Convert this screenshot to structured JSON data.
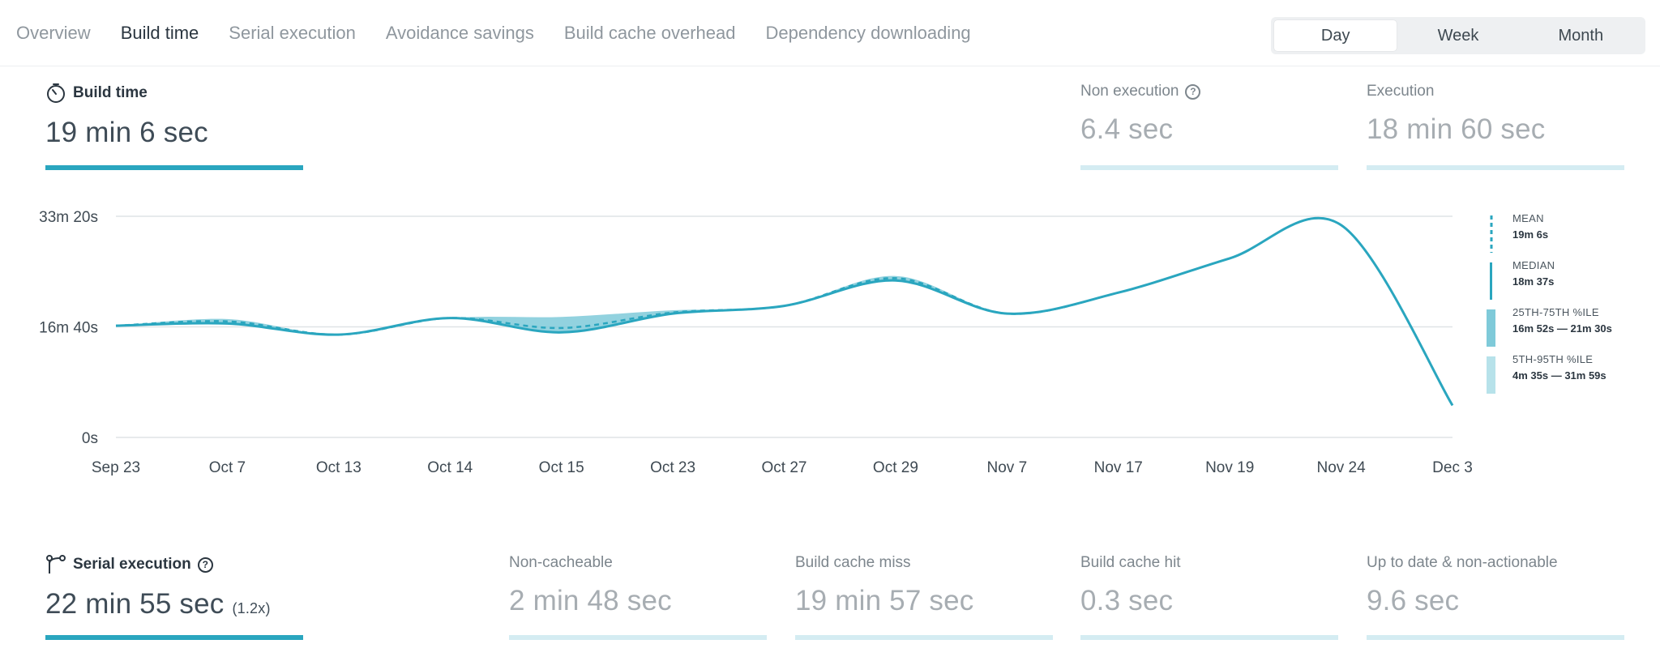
{
  "tabs": [
    {
      "label": "Overview",
      "active": false
    },
    {
      "label": "Build time",
      "active": true
    },
    {
      "label": "Serial execution",
      "active": false
    },
    {
      "label": "Avoidance savings",
      "active": false
    },
    {
      "label": "Build cache overhead",
      "active": false
    },
    {
      "label": "Dependency downloading",
      "active": false
    }
  ],
  "period": {
    "options": [
      "Day",
      "Week",
      "Month"
    ],
    "selected": "Day"
  },
  "build_time": {
    "label": "Build time",
    "value": "19 min 6 sec",
    "icon": "stopwatch-icon"
  },
  "non_execution": {
    "label": "Non execution",
    "value": "6.4 sec"
  },
  "execution": {
    "label": "Execution",
    "value": "18 min 60 sec"
  },
  "serial_execution": {
    "label": "Serial execution",
    "value": "22 min 55 sec",
    "multiplier": "(1.2x)",
    "icon": "branch-icon"
  },
  "non_cacheable": {
    "label": "Non-cacheable",
    "value": "2 min 48 sec"
  },
  "cache_miss": {
    "label": "Build cache miss",
    "value": "19 min 57 sec"
  },
  "cache_hit": {
    "label": "Build cache hit",
    "value": "0.3 sec"
  },
  "up_to_date": {
    "label": "Up to date & non-actionable",
    "value": "9.6 sec"
  },
  "legend": {
    "mean": {
      "label": "MEAN",
      "value": "19m 6s"
    },
    "median": {
      "label": "MEDIAN",
      "value": "18m 37s"
    },
    "iqr": {
      "label": "25TH-75TH %ILE",
      "value": "16m 52s — 21m 30s"
    },
    "p5_95": {
      "label": "5TH-95TH %ILE",
      "value": "4m 35s — 31m 59s"
    }
  },
  "colors": {
    "accent": "#2aa6bf",
    "accent_light": "#d4ecf2",
    "band_dark": "#7fcad9",
    "band_light": "#b7e2ea"
  },
  "chart_data": {
    "type": "line",
    "y_unit": "seconds",
    "ylim": [
      0,
      2000
    ],
    "y_ticks": [
      {
        "value": 0,
        "label": "0s"
      },
      {
        "value": 1000,
        "label": "16m 40s"
      },
      {
        "value": 2000,
        "label": "33m 20s"
      }
    ],
    "categories": [
      "Sep 23",
      "Oct 7",
      "Oct 13",
      "Oct 14",
      "Oct 15",
      "Oct 23",
      "Oct 27",
      "Oct 29",
      "Nov 7",
      "Nov 17",
      "Nov 19",
      "Nov 24",
      "Dec 3"
    ],
    "series": [
      {
        "name": "Median",
        "values": [
          1010,
          1030,
          930,
          1080,
          950,
          1120,
          1190,
          1420,
          1120,
          1310,
          1620,
          1920,
          290
        ]
      },
      {
        "name": "Mean",
        "values": [
          1010,
          1050,
          930,
          1080,
          990,
          1130,
          1190,
          1440,
          1120,
          1310,
          1620,
          1920,
          290
        ]
      },
      {
        "name": "75th percentile",
        "values": [
          1010,
          1070,
          930,
          1080,
          1090,
          1150,
          1190,
          1460,
          1120,
          1310,
          1620,
          1920,
          290
        ]
      }
    ]
  }
}
